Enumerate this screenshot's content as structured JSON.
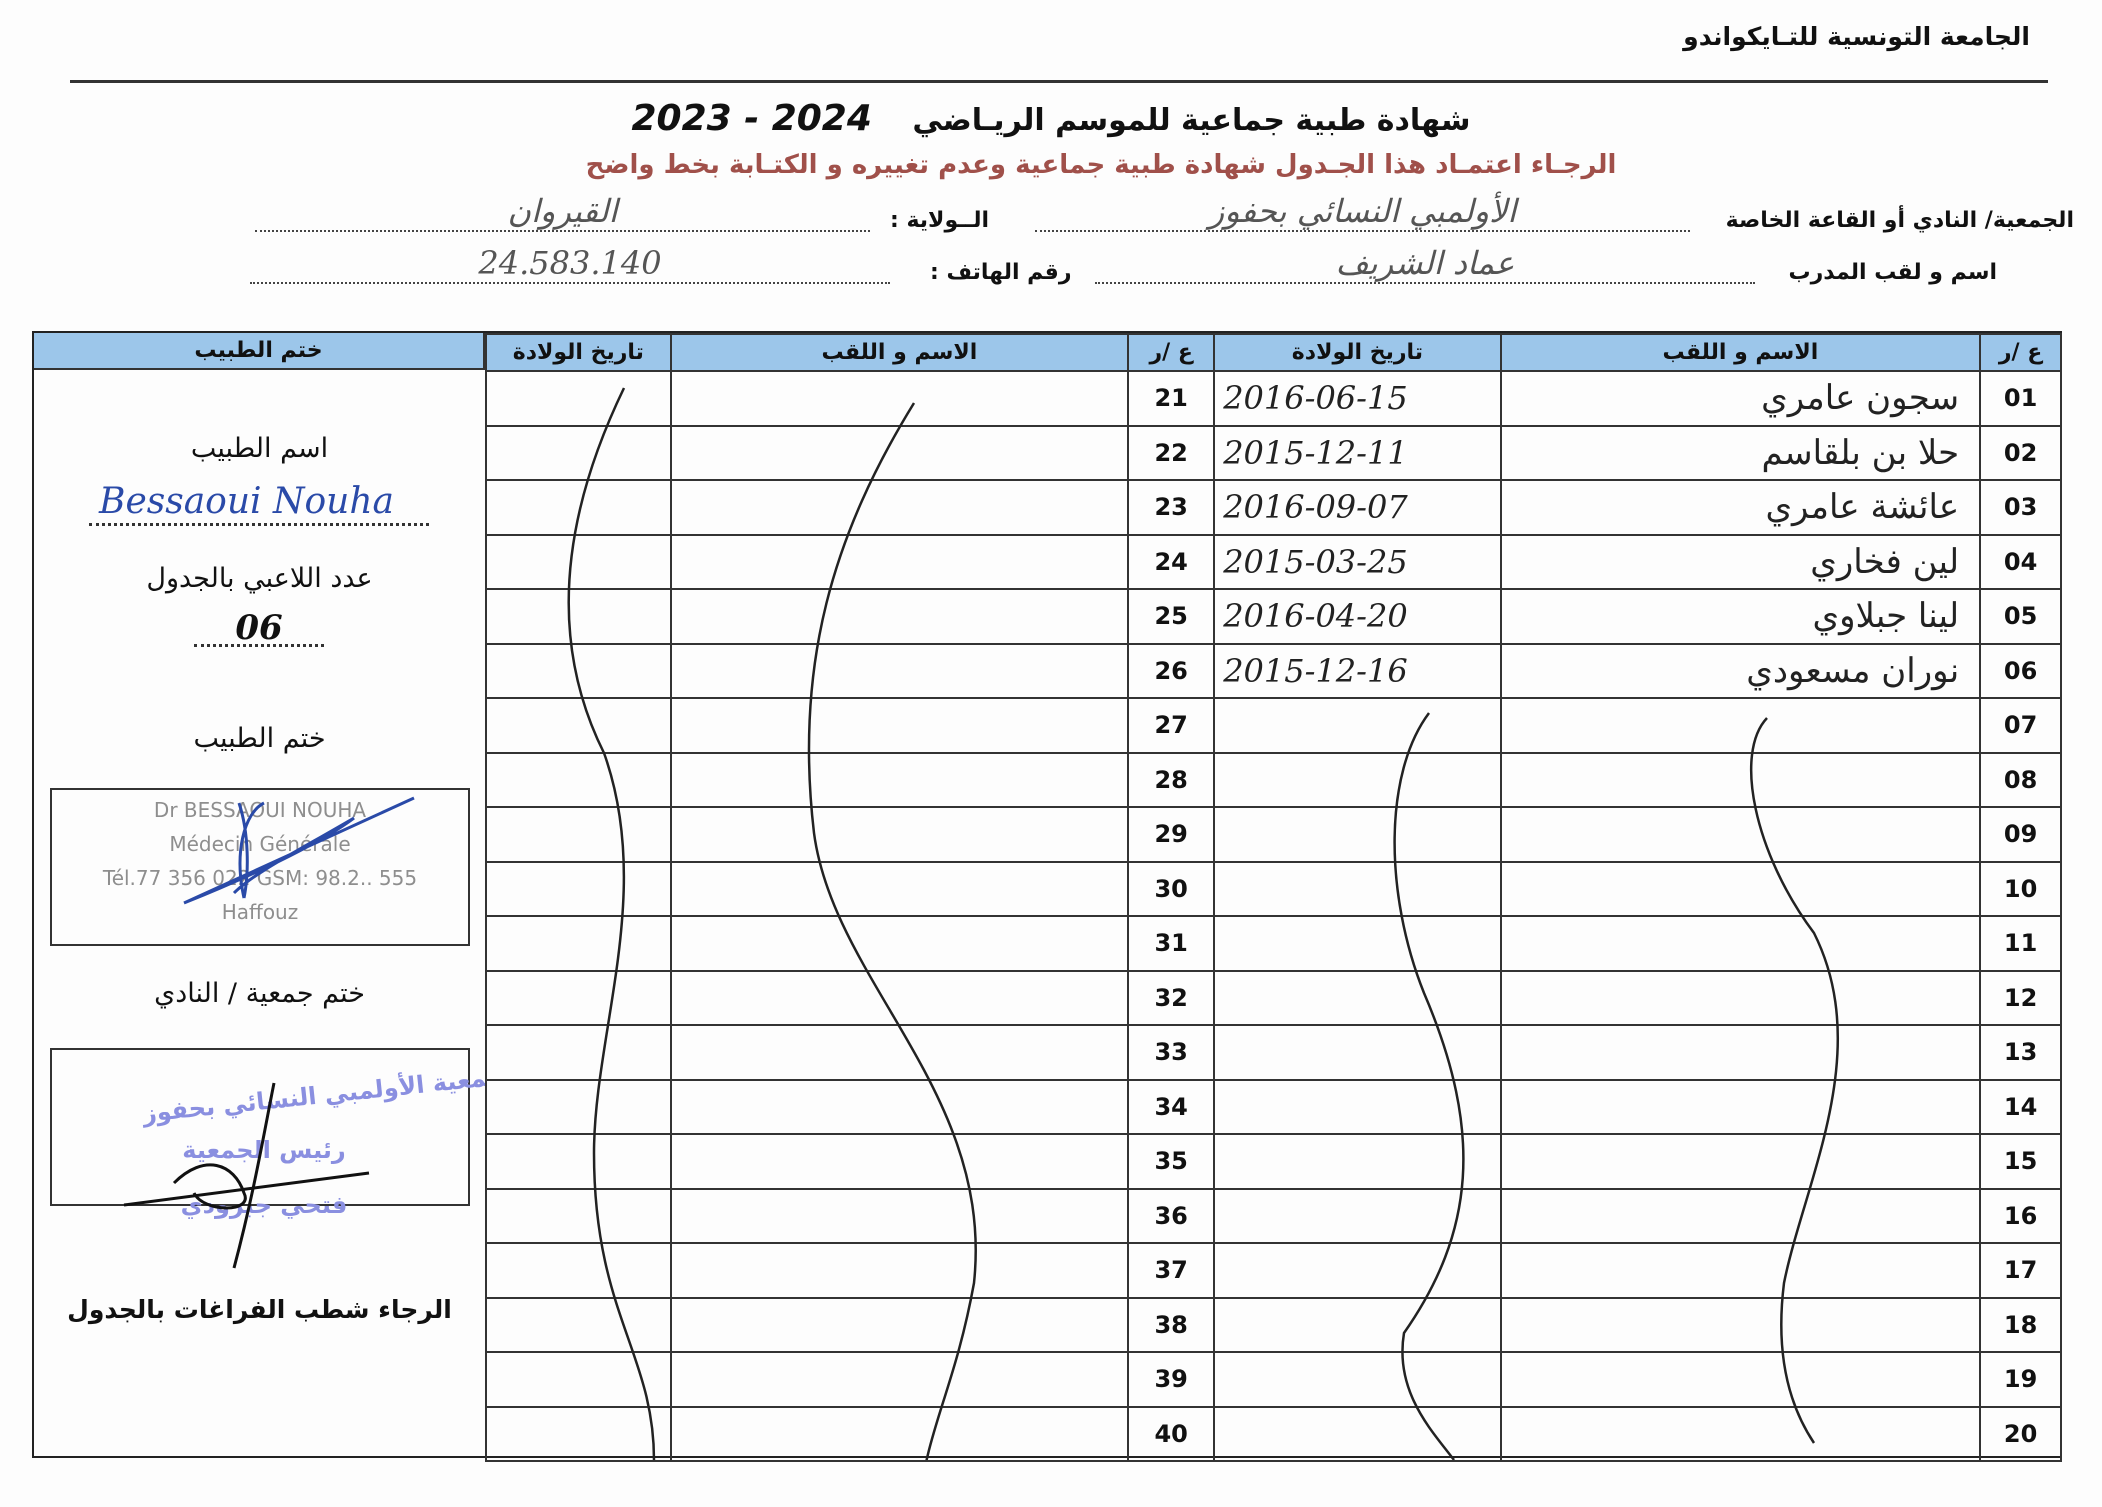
{
  "header": {
    "federation": "الجامعة التونسية للتـايكواندو"
  },
  "title": {
    "text": "شهادة طبية جماعية   للموسم الريـاضي",
    "season": "2023 - 2024"
  },
  "note": "الرجـاء اعتمـاد هذا الجـدول  شهادة طبية جماعية وعدم تغييره و الكتـابة بخط واضح",
  "form": {
    "club_label": "الجمعية/ النادي أو القاعة الخاصة",
    "club_value": "الأولمبي النسائي بحفوز",
    "state_label": "الــولاية :",
    "state_value": "القيروان",
    "coach_label": "اسم و لقب المدرب",
    "coach_value": "عماد الشريف",
    "phone_label": "رقم الهاتف :",
    "phone_value": "24.583.140"
  },
  "table": {
    "headers": {
      "num": "ع /ر",
      "name": "الاسم و اللقب",
      "dob": "تاريخ الولادة",
      "stamp": "ختم الطبيب"
    },
    "rows_left": [
      {
        "num": "01",
        "name": "سجون عامري",
        "dob": "2016-06-15"
      },
      {
        "num": "02",
        "name": "حلا بن بلقاسم",
        "dob": "2015-12-11"
      },
      {
        "num": "03",
        "name": "عائشة عامري",
        "dob": "2016-09-07"
      },
      {
        "num": "04",
        "name": "لين فخاري",
        "dob": "2015-03-25"
      },
      {
        "num": "05",
        "name": "لينا جبلاوي",
        "dob": "2016-04-20"
      },
      {
        "num": "06",
        "name": "نوران مسعودي",
        "dob": "2015-12-16"
      },
      {
        "num": "07",
        "name": "",
        "dob": ""
      },
      {
        "num": "08",
        "name": "",
        "dob": ""
      },
      {
        "num": "09",
        "name": "",
        "dob": ""
      },
      {
        "num": "10",
        "name": "",
        "dob": ""
      },
      {
        "num": "11",
        "name": "",
        "dob": ""
      },
      {
        "num": "12",
        "name": "",
        "dob": ""
      },
      {
        "num": "13",
        "name": "",
        "dob": ""
      },
      {
        "num": "14",
        "name": "",
        "dob": ""
      },
      {
        "num": "15",
        "name": "",
        "dob": ""
      },
      {
        "num": "16",
        "name": "",
        "dob": ""
      },
      {
        "num": "17",
        "name": "",
        "dob": ""
      },
      {
        "num": "18",
        "name": "",
        "dob": ""
      },
      {
        "num": "19",
        "name": "",
        "dob": ""
      },
      {
        "num": "20",
        "name": "",
        "dob": ""
      }
    ],
    "rows_right": [
      "21",
      "22",
      "23",
      "24",
      "25",
      "26",
      "27",
      "28",
      "29",
      "30",
      "31",
      "32",
      "33",
      "34",
      "35",
      "36",
      "37",
      "38",
      "39",
      "40"
    ]
  },
  "side": {
    "doctor_name_label": "اسم الطبيب",
    "doctor_name_value": "Bessaoui Nouha",
    "players_count_label": "عدد اللاعبي بالجدول",
    "players_count_value": "06",
    "doctor_stamp_label": "ختم الطبيب",
    "doctor_stamp_text": [
      "Dr BESSAOUI NOUHA",
      "Médecin Générale",
      "Tél.77 356 022 GSM: 98.2.. 555",
      "Haffouz"
    ],
    "club_stamp_label": "ختم جمعية / النادي",
    "club_stamp_text": [
      "جمعية الأولمبي النسائي بحفوز",
      "رئيس الجمعية",
      "فتحي جبرودي"
    ],
    "footer_note": "الرجاء شطب  الفراغات بالجدول"
  },
  "colors": {
    "header_fill": "#9cc6ea",
    "note_red": "#a0504a",
    "ink_blue": "#2a4aa8",
    "stamp_purple": "#8a8fe0"
  }
}
